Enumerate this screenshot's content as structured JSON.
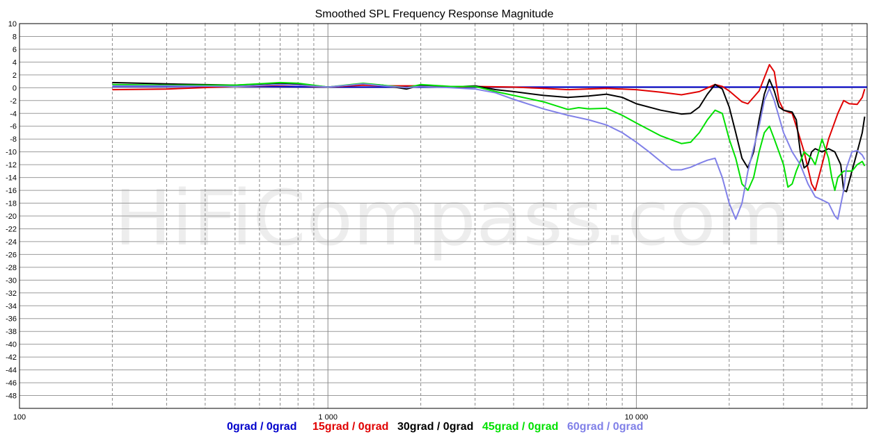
{
  "chart_data": {
    "type": "line",
    "title": "Smoothed SPL Frequency Response Magnitude",
    "watermark": "HiFiCompass.com",
    "xscale": "log",
    "xlim": [
      100,
      56000
    ],
    "ylim": [
      -50,
      10
    ],
    "grid": true,
    "legend_position": "bottom",
    "x_tick_labels": [
      {
        "value": 100,
        "label": "100"
      },
      {
        "value": 1000,
        "label": "1 000"
      },
      {
        "value": 10000,
        "label": "10 000"
      }
    ],
    "y_tick_labels": [
      "10",
      "8",
      "6",
      "4",
      "2",
      "0",
      "-2",
      "-4",
      "-6",
      "-8",
      "-10",
      "-12",
      "-14",
      "-16",
      "-18",
      "-20",
      "-22",
      "-24",
      "-26",
      "-28",
      "-30",
      "-32",
      "-34",
      "-36",
      "-38",
      "-40",
      "-42",
      "-44",
      "-46",
      "-48"
    ],
    "series": [
      {
        "name": "0grad / 0grad",
        "color": "#0000cc",
        "points": [
          [
            200,
            0.2
          ],
          [
            500,
            0.2
          ],
          [
            1000,
            0.1
          ],
          [
            2000,
            0.1
          ],
          [
            5000,
            0.1
          ],
          [
            10000,
            0.1
          ],
          [
            20000,
            0.1
          ],
          [
            40000,
            0.1
          ],
          [
            56000,
            0.1
          ]
        ]
      },
      {
        "name": "15grad / 0grad",
        "color": "#e00000",
        "points": [
          [
            200,
            -0.3
          ],
          [
            300,
            -0.2
          ],
          [
            500,
            0.2
          ],
          [
            700,
            0.4
          ],
          [
            800,
            0.4
          ],
          [
            900,
            0.2
          ],
          [
            1000,
            0.1
          ],
          [
            1300,
            0.4
          ],
          [
            1500,
            0.3
          ],
          [
            2000,
            0.3
          ],
          [
            2500,
            0.1
          ],
          [
            3000,
            0.2
          ],
          [
            4000,
            0.1
          ],
          [
            5000,
            -0.1
          ],
          [
            6000,
            -0.3
          ],
          [
            8000,
            -0.1
          ],
          [
            10000,
            -0.3
          ],
          [
            12000,
            -0.7
          ],
          [
            14000,
            -1.1
          ],
          [
            16000,
            -0.6
          ],
          [
            18000,
            0.5
          ],
          [
            19000,
            0.2
          ],
          [
            20000,
            -0.5
          ],
          [
            22000,
            -2.2
          ],
          [
            23000,
            -2.5
          ],
          [
            25000,
            -0.5
          ],
          [
            27000,
            3.6
          ],
          [
            28000,
            2.5
          ],
          [
            29000,
            -2
          ],
          [
            30000,
            -3.5
          ],
          [
            32000,
            -4
          ],
          [
            33000,
            -6
          ],
          [
            35000,
            -10
          ],
          [
            37000,
            -15
          ],
          [
            38000,
            -16
          ],
          [
            40000,
            -12
          ],
          [
            42000,
            -8
          ],
          [
            45000,
            -4
          ],
          [
            47000,
            -2
          ],
          [
            49000,
            -2.5
          ],
          [
            52000,
            -2.6
          ],
          [
            54000,
            -1.5
          ],
          [
            55000,
            -0.2
          ]
        ]
      },
      {
        "name": "30grad / 0grad",
        "color": "#000000",
        "points": [
          [
            200,
            0.8
          ],
          [
            300,
            0.6
          ],
          [
            500,
            0.4
          ],
          [
            700,
            0.7
          ],
          [
            800,
            0.6
          ],
          [
            1000,
            0.1
          ],
          [
            1300,
            0.6
          ],
          [
            1500,
            0.4
          ],
          [
            1800,
            -0.2
          ],
          [
            2000,
            0.4
          ],
          [
            2500,
            0.1
          ],
          [
            3000,
            0.3
          ],
          [
            3500,
            -0.3
          ],
          [
            4000,
            -0.6
          ],
          [
            5000,
            -1.2
          ],
          [
            6000,
            -1.5
          ],
          [
            7000,
            -1.3
          ],
          [
            8000,
            -1
          ],
          [
            9000,
            -1.5
          ],
          [
            10000,
            -2.5
          ],
          [
            12000,
            -3.5
          ],
          [
            14000,
            -4.1
          ],
          [
            15000,
            -4
          ],
          [
            16000,
            -3
          ],
          [
            17000,
            -1
          ],
          [
            18000,
            0.5
          ],
          [
            19000,
            -0.2
          ],
          [
            20000,
            -3
          ],
          [
            21000,
            -7
          ],
          [
            22000,
            -11
          ],
          [
            23000,
            -12.5
          ],
          [
            24000,
            -10
          ],
          [
            25000,
            -5
          ],
          [
            26000,
            -1
          ],
          [
            27000,
            1.3
          ],
          [
            28000,
            -0.5
          ],
          [
            29000,
            -3
          ],
          [
            30000,
            -3.5
          ],
          [
            32000,
            -3.8
          ],
          [
            33000,
            -5
          ],
          [
            34000,
            -10
          ],
          [
            35000,
            -12.5
          ],
          [
            36000,
            -12
          ],
          [
            37000,
            -10
          ],
          [
            38000,
            -9.5
          ],
          [
            40000,
            -10
          ],
          [
            42000,
            -9.5
          ],
          [
            44000,
            -10
          ],
          [
            46000,
            -12
          ],
          [
            47000,
            -16
          ],
          [
            48000,
            -16.2
          ],
          [
            50000,
            -13
          ],
          [
            52000,
            -10
          ],
          [
            54000,
            -7
          ],
          [
            55000,
            -4.5
          ]
        ]
      },
      {
        "name": "45grad / 0grad",
        "color": "#00e000",
        "points": [
          [
            200,
            0.5
          ],
          [
            300,
            0.4
          ],
          [
            500,
            0.4
          ],
          [
            700,
            0.8
          ],
          [
            800,
            0.7
          ],
          [
            1000,
            0.1
          ],
          [
            1300,
            0.7
          ],
          [
            1500,
            0.4
          ],
          [
            1800,
            0
          ],
          [
            2000,
            0.5
          ],
          [
            2500,
            0.2
          ],
          [
            3000,
            0.2
          ],
          [
            3500,
            -0.6
          ],
          [
            4000,
            -1.2
          ],
          [
            5000,
            -2.2
          ],
          [
            6000,
            -3.4
          ],
          [
            6500,
            -3.1
          ],
          [
            7000,
            -3.3
          ],
          [
            8000,
            -3.2
          ],
          [
            9000,
            -4.3
          ],
          [
            10000,
            -5.5
          ],
          [
            12000,
            -7.5
          ],
          [
            14000,
            -8.7
          ],
          [
            15000,
            -8.5
          ],
          [
            16000,
            -7
          ],
          [
            17000,
            -5
          ],
          [
            18000,
            -3.5
          ],
          [
            19000,
            -4
          ],
          [
            20000,
            -8
          ],
          [
            21000,
            -11
          ],
          [
            22000,
            -15
          ],
          [
            23000,
            -16
          ],
          [
            24000,
            -14
          ],
          [
            25000,
            -10
          ],
          [
            26000,
            -7
          ],
          [
            27000,
            -6
          ],
          [
            28000,
            -8
          ],
          [
            30000,
            -12
          ],
          [
            31000,
            -15.5
          ],
          [
            32000,
            -15
          ],
          [
            33000,
            -13
          ],
          [
            35000,
            -10
          ],
          [
            37000,
            -11
          ],
          [
            38000,
            -12
          ],
          [
            40000,
            -8
          ],
          [
            42000,
            -11
          ],
          [
            43000,
            -14
          ],
          [
            44000,
            -16
          ],
          [
            45000,
            -14
          ],
          [
            47000,
            -13
          ],
          [
            50000,
            -13
          ],
          [
            52000,
            -12
          ],
          [
            54000,
            -11.5
          ],
          [
            55000,
            -12.2
          ]
        ]
      },
      {
        "name": "60grad / 0grad",
        "color": "#8080e8",
        "points": [
          [
            200,
            0.3
          ],
          [
            300,
            0.3
          ],
          [
            500,
            0.2
          ],
          [
            700,
            0.5
          ],
          [
            800,
            0.4
          ],
          [
            1000,
            0.1
          ],
          [
            1300,
            0.6
          ],
          [
            1500,
            0.3
          ],
          [
            1800,
            0
          ],
          [
            2000,
            0.2
          ],
          [
            2500,
            0
          ],
          [
            3000,
            -0.2
          ],
          [
            3500,
            -0.8
          ],
          [
            4000,
            -1.8
          ],
          [
            5000,
            -3.3
          ],
          [
            6000,
            -4.3
          ],
          [
            7000,
            -5
          ],
          [
            8000,
            -5.8
          ],
          [
            9000,
            -7
          ],
          [
            10000,
            -8.5
          ],
          [
            11000,
            -10
          ],
          [
            12000,
            -11.5
          ],
          [
            13000,
            -12.8
          ],
          [
            14000,
            -12.8
          ],
          [
            15000,
            -12.4
          ],
          [
            16000,
            -11.8
          ],
          [
            17000,
            -11.3
          ],
          [
            18000,
            -11
          ],
          [
            19000,
            -14
          ],
          [
            20000,
            -18
          ],
          [
            21000,
            -20.5
          ],
          [
            22000,
            -18
          ],
          [
            23000,
            -13
          ],
          [
            25000,
            -6
          ],
          [
            26000,
            -2
          ],
          [
            27000,
            -0.1
          ],
          [
            28000,
            -2
          ],
          [
            30000,
            -7
          ],
          [
            32000,
            -10
          ],
          [
            34000,
            -12
          ],
          [
            36000,
            -15
          ],
          [
            38000,
            -17
          ],
          [
            40000,
            -17.5
          ],
          [
            42000,
            -18
          ],
          [
            44000,
            -20
          ],
          [
            45000,
            -20.5
          ],
          [
            47000,
            -16
          ],
          [
            48000,
            -12.5
          ],
          [
            50000,
            -10
          ],
          [
            52000,
            -9.8
          ],
          [
            54000,
            -10.5
          ],
          [
            55000,
            -11.2
          ]
        ]
      }
    ]
  }
}
